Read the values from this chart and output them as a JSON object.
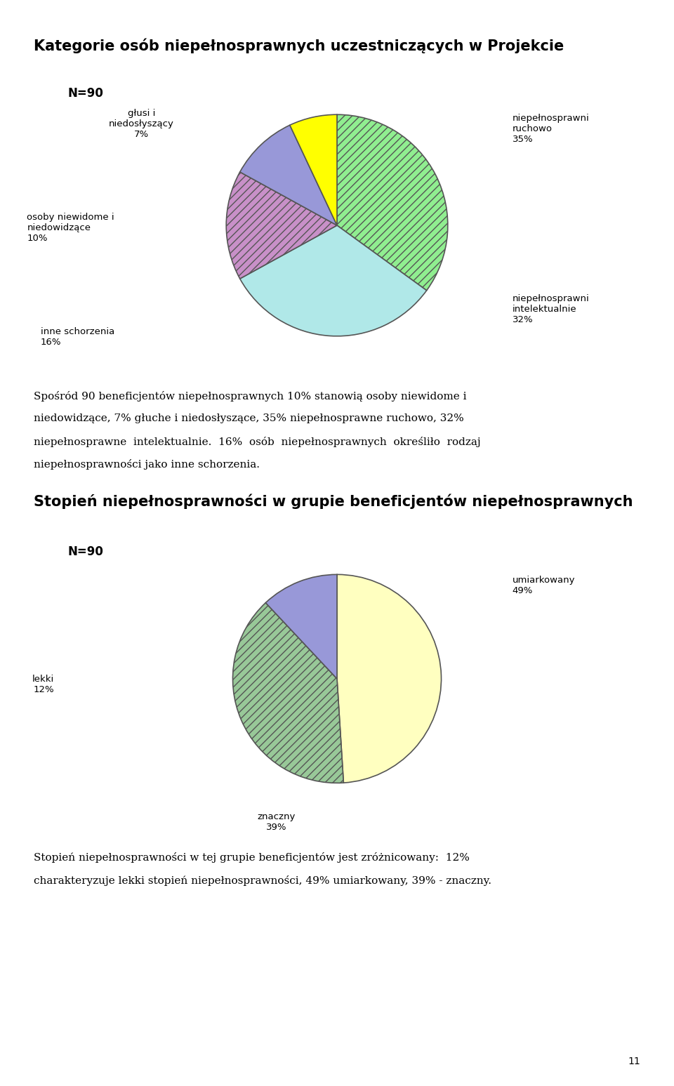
{
  "title1": "Kategorie osób niepełnosprawnych uczestniczących w Projekcie",
  "title2": "Stopień niepełnosprawności w grupie beneficjentów niepełnosprawnych",
  "n_label": "N=90",
  "pie1_values": [
    35,
    32,
    16,
    10,
    7
  ],
  "pie1_colors": [
    "#90EE90",
    "#B0E8E8",
    "#C890C8",
    "#9898D8",
    "#FFFF00"
  ],
  "pie1_hatch": [
    "///",
    "",
    "///",
    "",
    ""
  ],
  "pie1_edgecolor": "#555555",
  "pie1_label_texts": [
    "niepełnosprawni\nruchowo\n35%",
    "niepełnosprawni\nintelektualnie\n32%",
    "inne schorzenia\n16%",
    "osoby niewidome i\nniedowidzące\n10%",
    "głusi i\nniedosłyszący\n7%"
  ],
  "pie2_values": [
    49,
    39,
    12
  ],
  "pie2_colors": [
    "#FFFFC0",
    "#98C898",
    "#9898D8"
  ],
  "pie2_hatch": [
    "",
    "///",
    ""
  ],
  "pie2_edgecolor": "#555555",
  "pie2_label_texts": [
    "umiarkowany\n49%",
    "znaczny\n39%",
    "lekki\n12%"
  ],
  "para1_lines": [
    "Spośród 90 beneficjentów niepełnosprawnych 10% stanowią osoby niewidome i",
    "niedowidzące, 7% głuche i niedosłyszące, 35% niepełnosprawne ruchowo, 32%",
    "niepełnosprawne  intelektualnie.  16%  osób  niepełnosprawnych  określiło  rodzaj",
    "niepełnosprawności jako inne schorzenia."
  ],
  "para2_lines": [
    "Stopień niepełnosprawności w tej grupie beneficjentów jest zróżnicowany:  12%",
    "charakteryzuje lekki stopień niepełnosprawności, 49% umiarkowany, 39% - znaczny."
  ],
  "page_num": "11",
  "bg_color": "#FFFFFF",
  "text_color": "#000000",
  "title_fontsize": 15,
  "body_fontsize": 11,
  "n_fontsize": 12,
  "label_fontsize": 9.5
}
